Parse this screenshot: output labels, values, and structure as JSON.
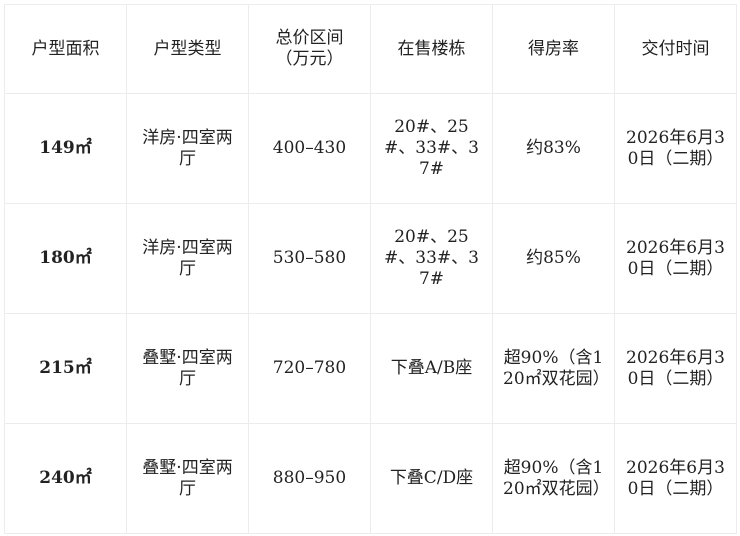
{
  "table": {
    "headers": [
      "户型面积",
      "户型类型",
      "总价区间（万元）",
      "在售楼栋",
      "得房率",
      "交付时间"
    ],
    "rows": [
      [
        "149㎡",
        "洋房·四室两厅",
        "400–430",
        "20#、25#、33#、37#",
        "约83%",
        "2026年6月30日（二期）"
      ],
      [
        "180㎡",
        "洋房·四室两厅",
        "530–580",
        "20#、25#、33#、37#",
        "约85%",
        "2026年6月30日（二期）"
      ],
      [
        "215㎡",
        "叠墅·四室两厅",
        "720–780",
        "下叠A/B座",
        "超90%（含120㎡双花园）",
        "2026年6月30日（二期）"
      ],
      [
        "240㎡",
        "叠墅·四室两厅",
        "880–950",
        "下叠C/D座",
        "超90%（含120㎡双花园）",
        "2026年6月30日（二期）"
      ]
    ]
  }
}
